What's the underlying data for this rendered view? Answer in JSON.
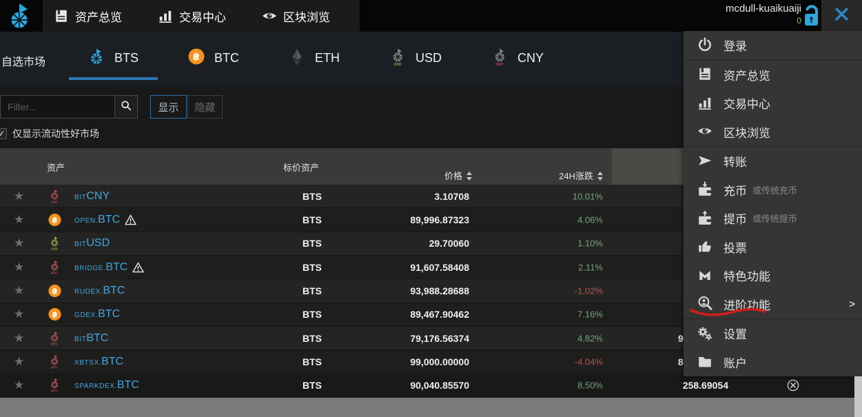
{
  "colors": {
    "accent_blue": "#2aa9e0",
    "link_blue": "#41a8e0",
    "green": "#71a580",
    "red": "#b4584c",
    "underline_red": "#d41c18",
    "btc_orange": "#f7931a"
  },
  "topbar": {
    "nav": [
      {
        "label": "资产总览",
        "icon": "dashboard-icon"
      },
      {
        "label": "交易中心",
        "icon": "exchange-icon"
      },
      {
        "label": "区块浏览",
        "icon": "explorer-icon"
      }
    ],
    "username": "mcdull-kuaikuaiji",
    "badge_count": "0"
  },
  "market_tabs": {
    "starred_label": "自选市场",
    "tabs": [
      {
        "label": "BTS",
        "icon": "bts",
        "sub": "",
        "active": true
      },
      {
        "label": "BTC",
        "icon": "btc",
        "sub": "",
        "active": false
      },
      {
        "label": "ETH",
        "icon": "eth",
        "sub": "",
        "active": false
      },
      {
        "label": "USD",
        "icon": "pin-gray",
        "sub": "USD",
        "sub_color": "#9aad4e",
        "active": false
      },
      {
        "label": "CNY",
        "icon": "pin-gray",
        "sub": "CNY",
        "sub_color": "#c34f5a",
        "active": false
      }
    ]
  },
  "filter": {
    "placeholder": "Filter...",
    "show_label": "显示",
    "hide_label": "隐藏",
    "checkbox_checked": "✓",
    "liquidity_label": "仅显示流动性好市场"
  },
  "table": {
    "headers": {
      "asset": "资产",
      "quote": "标价资产",
      "price": "价格",
      "change": "24H涨跌"
    },
    "rows": [
      {
        "prefix": "BIT",
        "name": "CNY",
        "icon": "pin-red",
        "icon_label": "CNY",
        "warning": false,
        "quote": "BTS",
        "price": "3.10708",
        "change": "10.01%",
        "dir": "up"
      },
      {
        "prefix": "OPEN.",
        "name": "BTC",
        "icon": "btc",
        "icon_label": "",
        "warning": true,
        "quote": "BTS",
        "price": "89,996.87323",
        "change": "4.06%",
        "dir": "up"
      },
      {
        "prefix": "BIT",
        "name": "USD",
        "icon": "pin-green",
        "icon_label": "USD",
        "warning": false,
        "quote": "BTS",
        "price": "29.70060",
        "change": "1.10%",
        "dir": "up"
      },
      {
        "prefix": "BRIDGE.",
        "name": "BTC",
        "icon": "pin-red",
        "icon_label": "BTC",
        "warning": true,
        "quote": "BTS",
        "price": "91,607.58408",
        "change": "2.11%",
        "dir": "up"
      },
      {
        "prefix": "RUDEX.",
        "name": "BTC",
        "icon": "btc",
        "icon_label": "",
        "warning": false,
        "quote": "BTS",
        "price": "93,988.28688",
        "change": "-1.02%",
        "dir": "down"
      },
      {
        "prefix": "GDEX.",
        "name": "BTC",
        "icon": "btc",
        "icon_label": "",
        "warning": false,
        "quote": "BTS",
        "price": "89,467.90462",
        "change": "7.16%",
        "dir": "up"
      },
      {
        "prefix": "BIT",
        "name": "BTC",
        "icon": "pin-red",
        "icon_label": "BTC",
        "warning": false,
        "quote": "BTS",
        "price": "79,176.56374",
        "change": "4.82%",
        "dir": "up",
        "volume_fragment": "9"
      },
      {
        "prefix": "XBTSX.",
        "name": "BTC",
        "icon": "pin-red",
        "icon_label": "BTC",
        "warning": false,
        "quote": "BTS",
        "price": "99,000.00000",
        "change": "-4.04%",
        "dir": "down",
        "volume_fragment": "8"
      },
      {
        "prefix": "SPARKDEX.",
        "name": "BTC",
        "icon": "pin-red",
        "icon_label": "BTC",
        "warning": false,
        "quote": "BTS",
        "price": "90,040.85570",
        "change": "8.50%",
        "dir": "up",
        "volume": "258.69054",
        "removable": true
      }
    ]
  },
  "menu": {
    "items": [
      {
        "label": "登录",
        "icon": "power-icon"
      },
      {
        "label": "资产总览",
        "icon": "dashboard-icon",
        "divider_before": true
      },
      {
        "label": "交易中心",
        "icon": "exchange-icon"
      },
      {
        "label": "区块浏览",
        "icon": "explorer-icon"
      },
      {
        "label": "转账",
        "icon": "send-icon",
        "divider_before": true
      },
      {
        "label": "充币",
        "sub": "或传统充币",
        "icon": "deposit-icon"
      },
      {
        "label": "提币",
        "sub": "或传统提币",
        "icon": "withdraw-icon"
      },
      {
        "label": "投票",
        "icon": "vote-icon"
      },
      {
        "label": "特色功能",
        "icon": "featured-icon"
      },
      {
        "label": "进阶功能",
        "icon": "advanced-icon",
        "arrow": ">",
        "highlighted": true
      },
      {
        "label": "设置",
        "icon": "settings-icon",
        "divider_before": true
      },
      {
        "label": "账户",
        "icon": "folder-icon"
      }
    ]
  }
}
